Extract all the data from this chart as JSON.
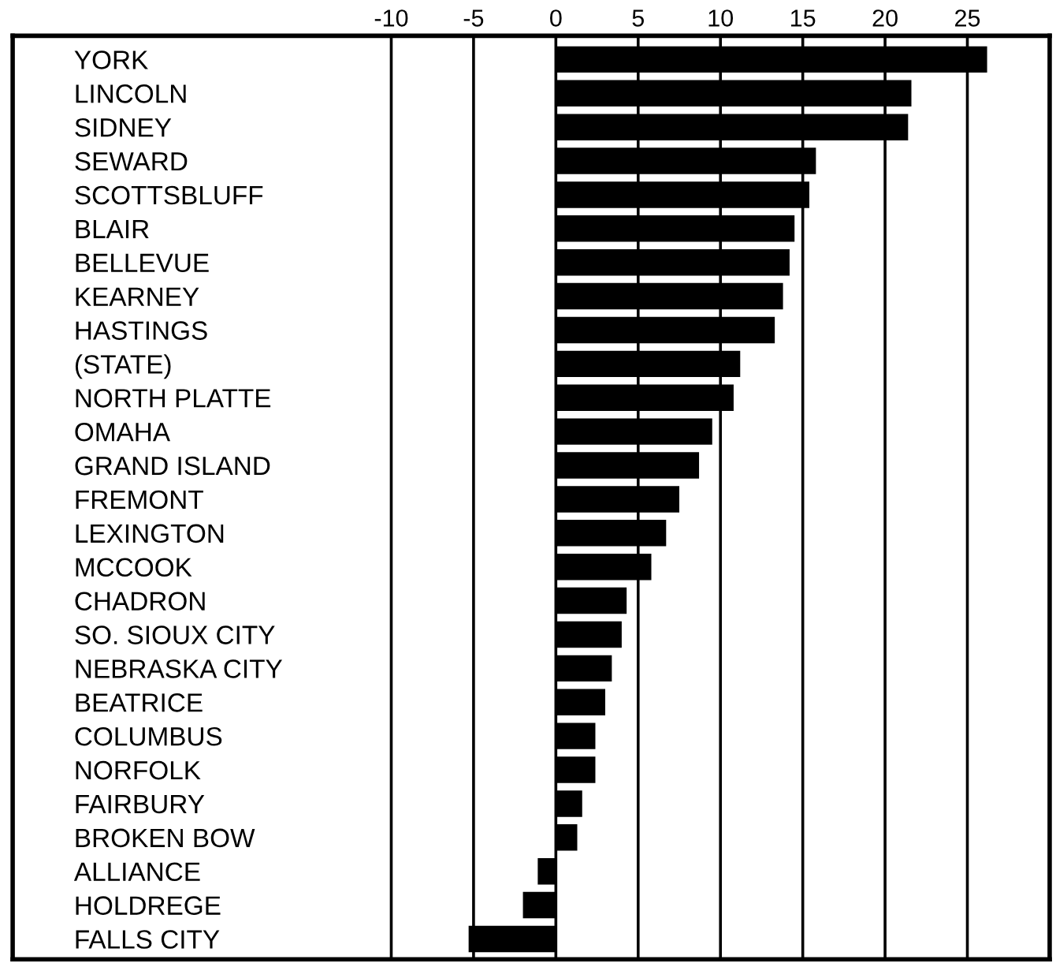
{
  "chart_data": {
    "type": "bar",
    "orientation": "horizontal",
    "categories": [
      "YORK",
      "LINCOLN",
      "SIDNEY",
      "SEWARD",
      "SCOTTSBLUFF",
      "BLAIR",
      "BELLEVUE",
      "KEARNEY",
      "HASTINGS",
      "(STATE)",
      "NORTH PLATTE",
      "OMAHA",
      "GRAND ISLAND",
      "FREMONT",
      "LEXINGTON",
      "MCCOOK",
      "CHADRON",
      "SO. SIOUX CITY",
      "NEBRASKA CITY",
      "BEATRICE",
      "COLUMBUS",
      "NORFOLK",
      "FAIRBURY",
      "BROKEN BOW",
      "ALLIANCE",
      "HOLDREGE",
      "FALLS CITY"
    ],
    "values": [
      26.2,
      21.6,
      21.4,
      15.8,
      15.4,
      14.5,
      14.2,
      13.8,
      13.3,
      11.2,
      10.8,
      9.5,
      8.7,
      7.5,
      6.7,
      5.8,
      4.3,
      4.0,
      3.4,
      3.0,
      2.4,
      2.4,
      1.6,
      1.3,
      -1.1,
      -2.0,
      -5.3
    ],
    "color": "#000000",
    "xlim": [
      -33,
      30
    ],
    "xticks": [
      -10,
      -5,
      0,
      5,
      10,
      15,
      20,
      25
    ],
    "grid": "x"
  }
}
